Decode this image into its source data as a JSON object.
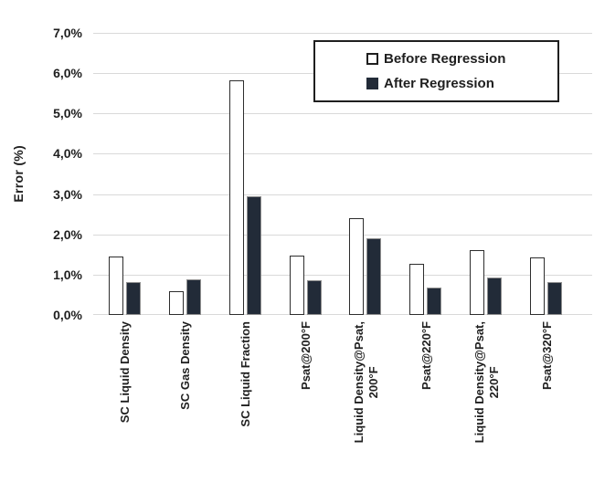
{
  "chart_data": {
    "type": "bar",
    "title": "",
    "ylabel": "Error (%)",
    "xlabel": "",
    "y_axis": {
      "min": 0,
      "max": 7,
      "tick_step": 1,
      "tick_labels_top_to_bottom": [
        "7,0%",
        "6,0%",
        "5,0%",
        "4,0%",
        "3,0%",
        "2,0%",
        "1,0%",
        "0,0%"
      ],
      "number_format": "percent with comma decimal separator"
    },
    "grid": {
      "horizontal": true,
      "vertical": false,
      "color": "#d9d9d9"
    },
    "categories": [
      {
        "label": "SC Liquid Density",
        "lines": [
          "SC Liquid Density"
        ]
      },
      {
        "label": "SC Gas Density",
        "lines": [
          "SC Gas Density"
        ]
      },
      {
        "label": "SC Liquid Fraction",
        "lines": [
          "SC Liquid Fraction"
        ]
      },
      {
        "label": "Psat@200°F",
        "lines": [
          "Psat@200°F"
        ]
      },
      {
        "label": "Liquid Density@Psat, 200°F",
        "lines": [
          "Liquid Density@Psat,",
          "200°F"
        ]
      },
      {
        "label": "Psat@220°F",
        "lines": [
          "Psat@220°F"
        ]
      },
      {
        "label": "Liquid Density@Psat, 220°F",
        "lines": [
          "Liquid Density@Psat,",
          "220°F"
        ]
      },
      {
        "label": "Psat@320°F",
        "lines": [
          "Psat@320°F"
        ]
      }
    ],
    "series": [
      {
        "name": "Before Regression",
        "fill": "#ffffff",
        "border": "#2d2d2d",
        "values_percent": [
          1.45,
          0.6,
          5.82,
          1.48,
          2.41,
          1.26,
          1.62,
          1.43
        ]
      },
      {
        "name": "After Regression",
        "fill": "#222b38",
        "border": "#8f8f8f",
        "values_percent": [
          0.82,
          0.88,
          2.95,
          0.87,
          1.91,
          0.68,
          0.92,
          0.82
        ]
      }
    ],
    "legend": {
      "position": "top-right-inside",
      "border_color": "#1f1f1f",
      "entries": [
        "Before Regression",
        "After Regression"
      ]
    }
  }
}
